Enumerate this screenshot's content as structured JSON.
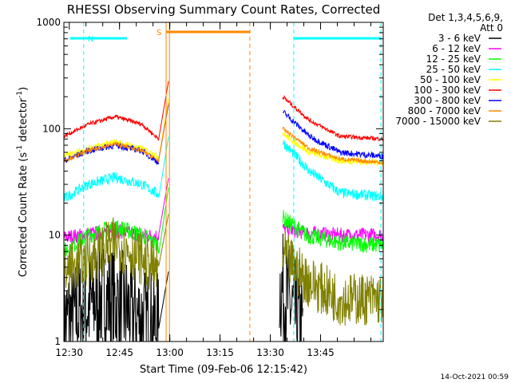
{
  "chart_data": {
    "type": "line",
    "title": "RHESSI Observing Summary Count Rates, Corrected",
    "xlabel": "Start Time (09-Feb-06 12:15:42)",
    "ylabel_parts": [
      "Corrected Count Rate (s",
      "-1",
      " detector",
      "-1",
      ")"
    ],
    "yscale": "log",
    "ylim": [
      1,
      1000
    ],
    "xlim_minutes": [
      12.7,
      108.0
    ],
    "x_unit": "minutes after 12:15:42",
    "xticks": [
      {
        "label": "12:30",
        "value": 14.3
      },
      {
        "label": "12:45",
        "value": 29.3
      },
      {
        "label": "13:00",
        "value": 44.3
      },
      {
        "label": "13:15",
        "value": 59.3
      },
      {
        "label": "13:30",
        "value": 74.3
      },
      {
        "label": "13:45",
        "value": 89.3
      }
    ],
    "yticks": [
      {
        "label": "1",
        "value": 1
      },
      {
        "label": "10",
        "value": 10
      },
      {
        "label": "100",
        "value": 100
      },
      {
        "label": "1000",
        "value": 1000
      }
    ],
    "legend_header": [
      "Det 1,3,4,5,6,9,",
      "Att 0"
    ],
    "legend_position": "right",
    "series": [
      {
        "name": "3 - 6 keV",
        "color": "#000000",
        "segA": [
          [
            12.7,
            1.5
          ],
          [
            18,
            1.9
          ],
          [
            24,
            2.7
          ],
          [
            30,
            2.1
          ],
          [
            36,
            1.6
          ],
          [
            41,
            1.3
          ]
        ],
        "segB": [
          [
            77,
            3.5
          ],
          [
            80,
            2.2
          ],
          [
            84,
            1.2
          ]
        ],
        "noise": 0.55
      },
      {
        "name": "6 - 12 keV",
        "color": "#ff00ff",
        "segA": [
          [
            12.7,
            9.5
          ],
          [
            20,
            10.2
          ],
          [
            28,
            11
          ],
          [
            36,
            10
          ],
          [
            41,
            9.8
          ]
        ],
        "segB": [
          [
            78,
            11.5
          ],
          [
            85,
            10.5
          ],
          [
            95,
            10
          ],
          [
            108,
            10
          ]
        ],
        "noise": 0.07
      },
      {
        "name": "12 - 25 keV",
        "color": "#00ff00",
        "segA": [
          [
            12.7,
            7
          ],
          [
            20,
            10
          ],
          [
            28,
            12
          ],
          [
            36,
            10
          ],
          [
            41,
            8
          ]
        ],
        "segB": [
          [
            78,
            14.5
          ],
          [
            85,
            10
          ],
          [
            95,
            8.5
          ],
          [
            108,
            8
          ]
        ],
        "noise": 0.08
      },
      {
        "name": "25 - 50 keV",
        "color": "#00ffff",
        "segA": [
          [
            12.7,
            22
          ],
          [
            20,
            30
          ],
          [
            28,
            35
          ],
          [
            36,
            30
          ],
          [
            41,
            24
          ]
        ],
        "segB": [
          [
            78,
            75
          ],
          [
            86,
            40
          ],
          [
            95,
            25
          ],
          [
            108,
            23
          ]
        ],
        "noise": 0.05
      },
      {
        "name": "50 - 100 keV",
        "color": "#ffff00",
        "segA": [
          [
            12.7,
            55
          ],
          [
            20,
            65
          ],
          [
            28,
            75
          ],
          [
            36,
            65
          ],
          [
            41,
            55
          ]
        ],
        "segB": [
          [
            78,
            90
          ],
          [
            86,
            60
          ],
          [
            95,
            50
          ],
          [
            108,
            48
          ]
        ],
        "noise": 0.03
      },
      {
        "name": "100 - 300 keV",
        "color": "#ff0000",
        "segA": [
          [
            12.7,
            85
          ],
          [
            20,
            110
          ],
          [
            28,
            130
          ],
          [
            36,
            110
          ],
          [
            41,
            80
          ]
        ],
        "segB": [
          [
            78,
            200
          ],
          [
            86,
            120
          ],
          [
            95,
            85
          ],
          [
            108,
            80
          ]
        ],
        "noise": 0.02
      },
      {
        "name": "300 - 800 keV",
        "color": "#0000ff",
        "segA": [
          [
            12.7,
            50
          ],
          [
            20,
            62
          ],
          [
            28,
            70
          ],
          [
            36,
            62
          ],
          [
            41,
            48
          ]
        ],
        "segB": [
          [
            78,
            145
          ],
          [
            86,
            85
          ],
          [
            95,
            60
          ],
          [
            108,
            55
          ]
        ],
        "noise": 0.03
      },
      {
        "name": "800 - 7000 keV",
        "color": "#ff8800",
        "segA": [
          [
            12.7,
            50
          ],
          [
            20,
            62
          ],
          [
            28,
            72
          ],
          [
            36,
            62
          ],
          [
            41,
            50
          ]
        ],
        "segB": [
          [
            78,
            100
          ],
          [
            86,
            65
          ],
          [
            95,
            52
          ],
          [
            108,
            48
          ]
        ],
        "noise": 0.02
      },
      {
        "name": "7000 - 15000 keV",
        "color": "#808000",
        "segA": [
          [
            12.7,
            4.5
          ],
          [
            20,
            6
          ],
          [
            28,
            8.5
          ],
          [
            36,
            6
          ],
          [
            41,
            4.5
          ]
        ],
        "segB": [
          [
            78,
            6.5
          ],
          [
            85,
            3.8
          ],
          [
            95,
            2.5
          ],
          [
            108,
            2.5
          ]
        ],
        "noise": 0.25
      }
    ],
    "annotations": {
      "night_label": "N",
      "saa_label": "S",
      "night_lines_minutes": [
        18.6,
        81.3,
        107.3
      ],
      "saa_lines_minutes": [
        43.2,
        68.2
      ],
      "night_bars_minutes": [
        [
          14.5,
          31.5
        ],
        [
          81.3,
          107.3
        ]
      ],
      "saa_bar_minutes": [
        43.2,
        68.2
      ],
      "gap_minutes": [
        44.2,
        77.0
      ],
      "colors": {
        "night": "#00ffff",
        "saa": "#ff8800"
      }
    }
  },
  "footer": {
    "date": "14-Oct-2021 00:59"
  }
}
